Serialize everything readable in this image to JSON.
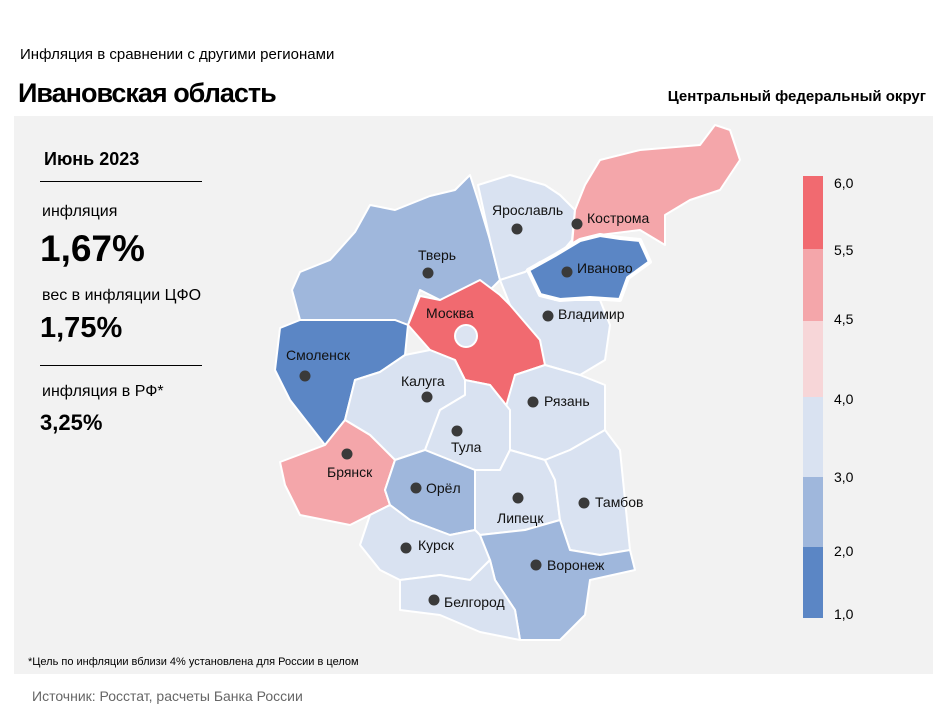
{
  "header": {
    "subtitle": "Инфляция в сравнении с другими регионами",
    "title": "Ивановская область",
    "district": "Центральный федеральный округ"
  },
  "stats": {
    "period": "Июнь 2023",
    "inflation_label": "инфляция",
    "inflation_value": "1,67%",
    "weight_label": "вес в инфляции ЦФО",
    "weight_value": "1,75%",
    "russia_label": "инфляция в РФ*",
    "russia_value": "3,25%"
  },
  "footnote": "*Цель по инфляции вблизи 4% установлена для России в целом",
  "source": "Источник: Росстат, расчеты Банка России",
  "colors": {
    "c1_2": "#5b86c5",
    "c2_3": "#9fb7dc",
    "c3_4": "#d9e2f1",
    "c4_45": "#f7d6d8",
    "c45_55": "#f4a6aa",
    "c55_6": "#f16a70",
    "highlight_stroke": "#ffffff"
  },
  "legend": {
    "ticks": [
      "6,0",
      "5,5",
      "4,5",
      "4,0",
      "3,0",
      "2,0",
      "1,0"
    ]
  },
  "regions": [
    {
      "name": "Ярославль",
      "band": "c3_4"
    },
    {
      "name": "Кострома",
      "band": "c45_55"
    },
    {
      "name": "Иваново",
      "band": "c1_2",
      "highlight": true
    },
    {
      "name": "Тверь",
      "band": "c2_3"
    },
    {
      "name": "Москва",
      "band": "c55_6"
    },
    {
      "name": "Владимир",
      "band": "c3_4"
    },
    {
      "name": "Смоленск",
      "band": "c1_2"
    },
    {
      "name": "Калуга",
      "band": "c3_4"
    },
    {
      "name": "Рязань",
      "band": "c3_4"
    },
    {
      "name": "Тула",
      "band": "c3_4"
    },
    {
      "name": "Брянск",
      "band": "c45_55"
    },
    {
      "name": "Орёл",
      "band": "c2_3"
    },
    {
      "name": "Липецк",
      "band": "c3_4"
    },
    {
      "name": "Тамбов",
      "band": "c3_4"
    },
    {
      "name": "Курск",
      "band": "c3_4"
    },
    {
      "name": "Воронеж",
      "band": "c2_3"
    },
    {
      "name": "Белгород",
      "band": "c3_4"
    }
  ]
}
